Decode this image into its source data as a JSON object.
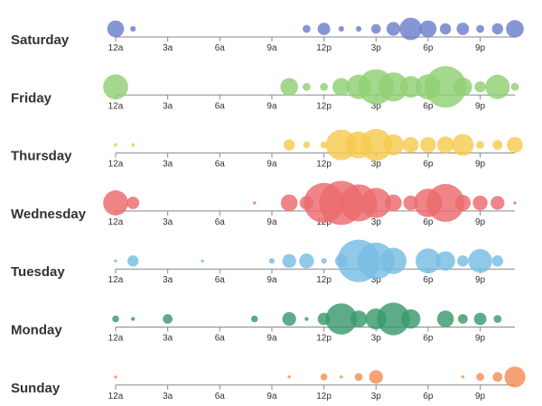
{
  "chart_data": {
    "type": "scatter",
    "encoding": "bubble timeline: x = hour of day, bubble area = value",
    "x_ticks": [
      "12a",
      "3a",
      "6a",
      "9a",
      "12p",
      "3p",
      "6p",
      "9p"
    ],
    "xlim": [
      0,
      23
    ],
    "series": [
      {
        "name": "Saturday",
        "color": "#6b7fcc",
        "hours": [
          0,
          1,
          11,
          12,
          13,
          14,
          15,
          16,
          17,
          18,
          19,
          20,
          21,
          22,
          23
        ],
        "values": [
          9,
          1,
          2,
          5,
          1,
          1,
          3,
          6,
          16,
          9,
          4,
          5,
          2,
          4,
          10
        ]
      },
      {
        "name": "Friday",
        "color": "#90cf74",
        "hours": [
          0,
          10,
          11,
          12,
          13,
          14,
          15,
          16,
          17,
          18,
          19,
          20,
          21,
          22,
          23
        ],
        "values": [
          20,
          10,
          2,
          2,
          10,
          19,
          40,
          27,
          15,
          20,
          55,
          11,
          4,
          19,
          2
        ]
      },
      {
        "name": "Thursday",
        "color": "#f7ca4f",
        "hours": [
          0,
          1,
          10,
          11,
          12,
          13,
          14,
          15,
          16,
          17,
          18,
          19,
          20,
          21,
          22,
          23
        ],
        "values": [
          0.4,
          0.4,
          4,
          1.5,
          1.5,
          30,
          23,
          33,
          14,
          8,
          8,
          9,
          15,
          2,
          3,
          8
        ]
      },
      {
        "name": "Wednesday",
        "color": "#ec6a6e",
        "hours": [
          0,
          1,
          8,
          10,
          11,
          12,
          13,
          14,
          15,
          16,
          17,
          18,
          19,
          20,
          21,
          22,
          23
        ],
        "values": [
          20,
          5,
          0.3,
          9,
          6,
          51,
          62,
          44,
          29,
          9,
          7,
          26,
          46,
          8,
          7,
          6,
          0.3
        ]
      },
      {
        "name": "Tuesday",
        "color": "#76bde3",
        "hours": [
          0,
          1,
          5,
          9,
          10,
          11,
          12,
          13,
          14,
          15,
          16,
          18,
          19,
          20,
          21,
          22
        ],
        "values": [
          0.3,
          4,
          0.3,
          1,
          6,
          7,
          1,
          5,
          58,
          43,
          22,
          20,
          12,
          4,
          18,
          4
        ]
      },
      {
        "name": "Monday",
        "color": "#3b9a6d",
        "hours": [
          0,
          1,
          3,
          8,
          10,
          11,
          12,
          13,
          14,
          15,
          16,
          17,
          19,
          20,
          21,
          22
        ],
        "values": [
          1.5,
          0.5,
          3,
          1.5,
          6,
          0.5,
          5,
          31,
          9,
          14,
          34,
          12,
          9,
          3,
          5,
          2
        ]
      },
      {
        "name": "Sunday",
        "color": "#f48d55",
        "hours": [
          0,
          10,
          12,
          13,
          14,
          15,
          20,
          21,
          22,
          23
        ],
        "values": [
          0.3,
          0.3,
          1.5,
          0.3,
          2,
          6,
          0.3,
          2,
          3,
          14
        ]
      }
    ]
  }
}
